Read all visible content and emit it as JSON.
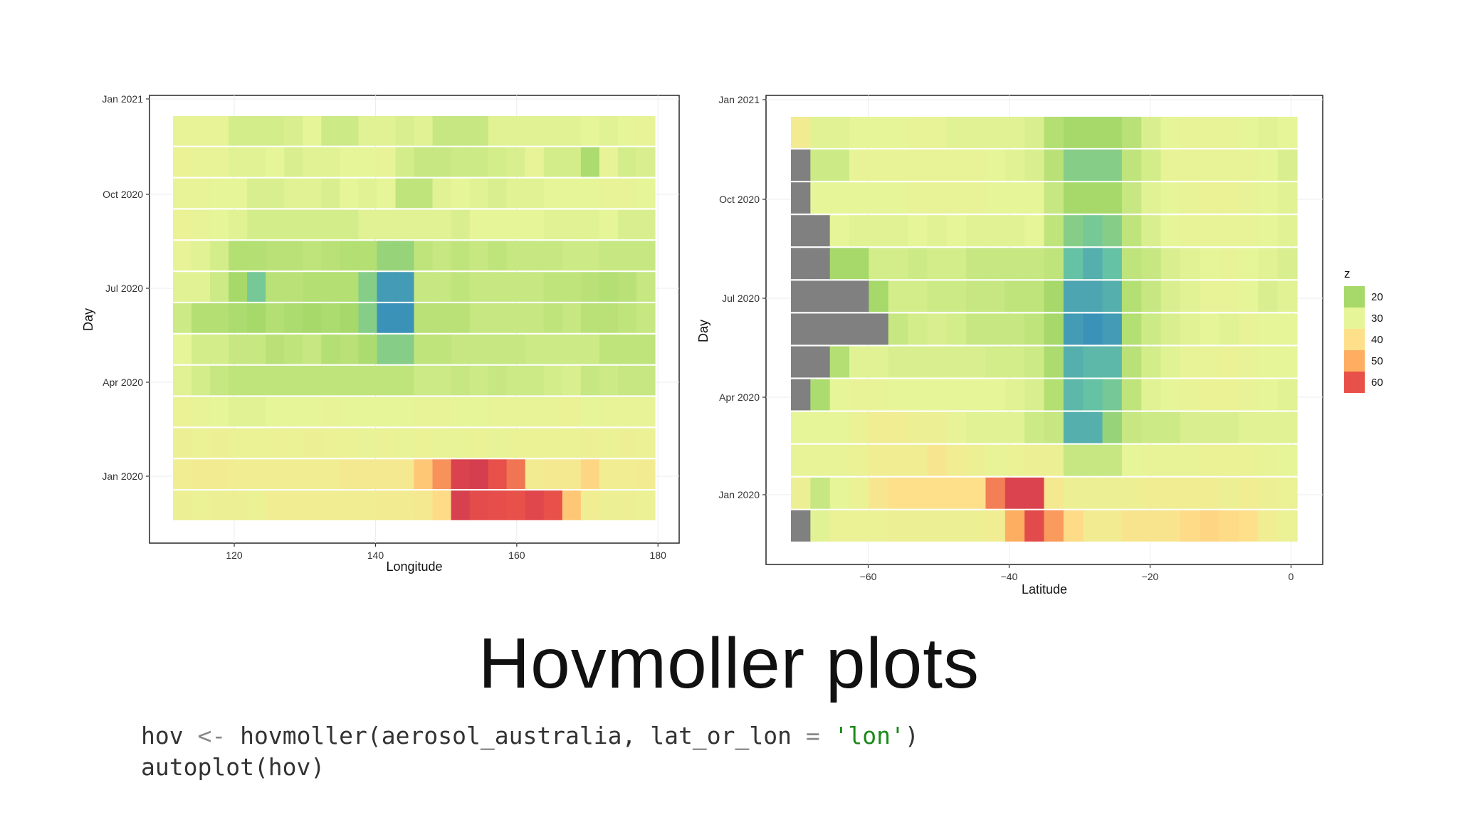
{
  "slide": {
    "title": "Hovmoller plots",
    "code": {
      "line1_a": "hov",
      "line1_op": " <- ",
      "line1_b": "hovmoller(aerosol_australia, lat_or_lon ",
      "line1_eq": "=",
      "line1_str": " 'lon'",
      "line1_end": ")",
      "line2": "autoplot(hov)"
    }
  },
  "legend": {
    "title": "z",
    "entries": [
      {
        "label": "20",
        "color": "#a6d96a"
      },
      {
        "label": "30",
        "color": "#e6f598"
      },
      {
        "label": "40",
        "color": "#fee08b"
      },
      {
        "label": "50",
        "color": "#fdae61"
      },
      {
        "label": "60",
        "color": "#e8504a"
      }
    ]
  },
  "chart_data": [
    {
      "type": "heatmap",
      "title": "",
      "xlabel": "Longitude",
      "ylabel": "Day",
      "x_range": [
        108,
        183
      ],
      "x_ticks": [
        120,
        140,
        160,
        180
      ],
      "x_tick_labels": [
        "120",
        "140",
        "160",
        "180"
      ],
      "y_ticks": [
        "Jan 2021",
        "Oct 2020",
        "Jul 2020",
        "Apr 2020",
        "Jan 2020"
      ],
      "x_start": 111,
      "x_step": 2.88,
      "row_months": [
        "Dec 2020",
        "Nov 2020",
        "Oct 2020",
        "Sep 2020",
        "Aug 2020",
        "Jul 2020",
        "Jun 2020",
        "May 2020",
        "Apr 2020",
        "Mar 2020",
        "Feb 2020",
        "Jan 2020",
        "Dec 2019"
      ],
      "z": [
        [
          31,
          31,
          31,
          27,
          27,
          27,
          28,
          30,
          26,
          26,
          29,
          29,
          28,
          29,
          25,
          25,
          25,
          29,
          29,
          29,
          29,
          29,
          30,
          29,
          30,
          31
        ],
        [
          32,
          31,
          31,
          29,
          29,
          30,
          28,
          29,
          29,
          30,
          30,
          31,
          27,
          25,
          25,
          26,
          26,
          27,
          28,
          31,
          27,
          27,
          21,
          31,
          27,
          28
        ],
        [
          31,
          31,
          30,
          30,
          28,
          28,
          29,
          29,
          28,
          30,
          29,
          30,
          24,
          24,
          29,
          30,
          29,
          28,
          29,
          29,
          30,
          30,
          30,
          31,
          31,
          30
        ],
        [
          32,
          31,
          30,
          29,
          27,
          27,
          27,
          27,
          27,
          27,
          29,
          29,
          29,
          29,
          29,
          28,
          30,
          30,
          30,
          30,
          29,
          29,
          29,
          30,
          28,
          28
        ],
        [
          31,
          29,
          27,
          22,
          22,
          23,
          23,
          24,
          23,
          22,
          22,
          19,
          19,
          24,
          25,
          24,
          25,
          24,
          25,
          25,
          25,
          26,
          26,
          25,
          25,
          25
        ],
        [
          29,
          29,
          26,
          20,
          17,
          23,
          23,
          22,
          22,
          22,
          18,
          12,
          12,
          25,
          25,
          24,
          25,
          25,
          25,
          25,
          24,
          24,
          23,
          22,
          23,
          25
        ],
        [
          26,
          22,
          22,
          21,
          20,
          22,
          21,
          20,
          21,
          20,
          18,
          11,
          11,
          23,
          23,
          23,
          25,
          25,
          25,
          25,
          24,
          25,
          23,
          23,
          24,
          25
        ],
        [
          30,
          27,
          27,
          25,
          25,
          23,
          24,
          25,
          22,
          23,
          21,
          18,
          18,
          24,
          24,
          25,
          25,
          25,
          25,
          26,
          26,
          26,
          26,
          24,
          24,
          24
        ],
        [
          29,
          27,
          25,
          24,
          24,
          24,
          24,
          24,
          24,
          24,
          24,
          24,
          24,
          26,
          26,
          25,
          26,
          25,
          26,
          26,
          27,
          28,
          25,
          26,
          25,
          25
        ],
        [
          32,
          31,
          30,
          29,
          29,
          30,
          30,
          30,
          31,
          30,
          30,
          30,
          30,
          31,
          31,
          30,
          30,
          31,
          31,
          31,
          31,
          32,
          30,
          31,
          31,
          31
        ],
        [
          33,
          32,
          33,
          32,
          32,
          32,
          32,
          33,
          32,
          32,
          31,
          32,
          31,
          32,
          31,
          31,
          32,
          31,
          32,
          32,
          32,
          32,
          33,
          32,
          33,
          32
        ],
        [
          34,
          35,
          35,
          34,
          34,
          34,
          34,
          34,
          34,
          36,
          36,
          36,
          36,
          45,
          53,
          68,
          70,
          60,
          56,
          35,
          36,
          36,
          42,
          34,
          34,
          35
        ],
        [
          33,
          32,
          33,
          33,
          32,
          34,
          34,
          34,
          34,
          34,
          34,
          35,
          35,
          36,
          41,
          69,
          62,
          61,
          60,
          65,
          60,
          45,
          34,
          33,
          33,
          32
        ]
      ]
    },
    {
      "type": "heatmap",
      "title": "",
      "xlabel": "Latitude",
      "ylabel": "Day",
      "x_range": [
        -74.5,
        4.5
      ],
      "x_ticks": [
        -60,
        -40,
        -20,
        0
      ],
      "x_tick_labels": [
        "−60",
        "−40",
        "−20",
        "0"
      ],
      "y_ticks": [
        "Jan 2021",
        "Oct 2020",
        "Jul 2020",
        "Apr 2020",
        "Jan 2020"
      ],
      "x_start": -70.5,
      "x_step": 2.88,
      "row_months": [
        "Dec 2020",
        "Nov 2020",
        "Oct 2020",
        "Sep 2020",
        "Aug 2020",
        "Jul 2020",
        "Jun 2020",
        "May 2020",
        "Apr 2020",
        "Mar 2020",
        "Feb 2020",
        "Jan 2020",
        "Dec 2019"
      ],
      "missing_value": "gray",
      "z": [
        [
          35,
          29,
          29,
          30,
          30,
          30,
          31,
          31,
          29,
          29,
          29,
          29,
          28,
          22,
          20,
          20,
          20,
          23,
          28,
          30,
          31,
          31,
          31,
          30,
          29,
          30
        ],
        [
          null,
          26,
          26,
          31,
          31,
          31,
          31,
          31,
          31,
          31,
          30,
          29,
          28,
          23,
          18,
          18,
          18,
          24,
          27,
          31,
          31,
          31,
          31,
          31,
          30,
          28
        ],
        [
          null,
          30,
          30,
          30,
          30,
          30,
          31,
          31,
          31,
          31,
          30,
          30,
          30,
          25,
          20,
          20,
          20,
          25,
          29,
          30,
          31,
          32,
          32,
          31,
          30,
          29
        ],
        [
          null,
          null,
          30,
          29,
          29,
          29,
          30,
          29,
          30,
          29,
          29,
          29,
          30,
          24,
          18,
          17,
          18,
          24,
          28,
          30,
          31,
          31,
          31,
          31,
          30,
          29
        ],
        [
          null,
          null,
          20,
          20,
          27,
          27,
          26,
          27,
          27,
          25,
          25,
          25,
          25,
          24,
          16,
          14,
          16,
          24,
          25,
          28,
          29,
          30,
          31,
          30,
          29,
          28
        ],
        [
          null,
          null,
          null,
          null,
          20,
          27,
          27,
          26,
          26,
          25,
          25,
          24,
          24,
          20,
          13,
          13,
          14,
          22,
          25,
          28,
          29,
          31,
          31,
          30,
          28,
          29
        ],
        [
          null,
          null,
          null,
          null,
          null,
          25,
          27,
          28,
          27,
          25,
          25,
          25,
          24,
          20,
          12,
          11,
          12,
          22,
          26,
          28,
          29,
          30,
          29,
          31,
          30,
          30
        ],
        [
          null,
          null,
          22,
          29,
          29,
          28,
          28,
          28,
          28,
          28,
          27,
          27,
          26,
          21,
          14,
          15,
          15,
          23,
          27,
          29,
          31,
          31,
          32,
          31,
          30,
          30
        ],
        [
          null,
          21,
          30,
          31,
          31,
          30,
          30,
          30,
          30,
          30,
          30,
          29,
          28,
          22,
          15,
          16,
          17,
          24,
          29,
          30,
          31,
          32,
          32,
          31,
          30,
          29
        ],
        [
          30,
          30,
          30,
          32,
          34,
          34,
          33,
          33,
          31,
          29,
          29,
          29,
          26,
          25,
          14,
          14,
          19,
          25,
          26,
          26,
          28,
          28,
          28,
          29,
          29,
          29
        ],
        [
          31,
          31,
          31,
          32,
          34,
          34,
          34,
          37,
          34,
          33,
          31,
          32,
          33,
          33,
          25,
          25,
          25,
          30,
          31,
          31,
          31,
          32,
          32,
          32,
          31,
          30
        ],
        [
          33,
          25,
          30,
          32,
          37,
          40,
          40,
          40,
          40,
          40,
          55,
          67,
          67,
          36,
          33,
          33,
          33,
          33,
          34,
          34,
          34,
          34,
          33,
          34,
          33,
          32
        ],
        [
          null,
          29,
          32,
          32,
          32,
          33,
          33,
          33,
          33,
          33,
          34,
          50,
          63,
          52,
          41,
          35,
          35,
          38,
          38,
          38,
          41,
          42,
          41,
          40,
          34,
          32
        ]
      ]
    }
  ]
}
